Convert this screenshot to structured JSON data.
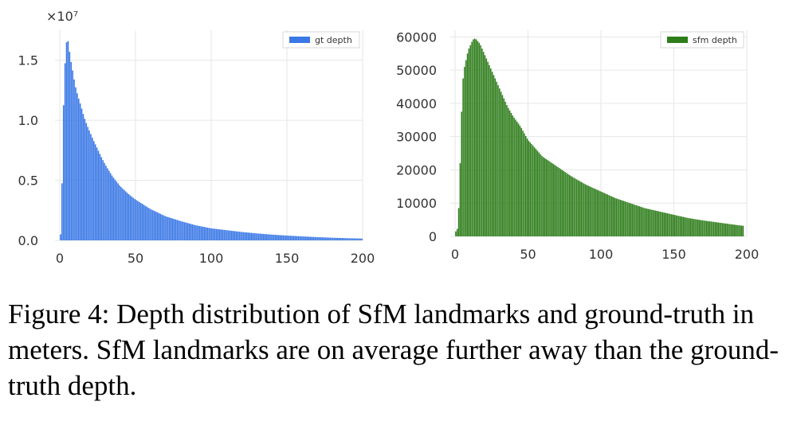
{
  "caption": "Figure 4: Depth distribution of SfM landmarks and ground-truth in meters. SfM landmarks are on average further away than the ground-truth depth.",
  "chart_data": [
    {
      "type": "bar",
      "title": "",
      "xlabel": "",
      "ylabel": "",
      "xlim": [
        0,
        200
      ],
      "ylim": [
        0,
        1.75
      ],
      "y_scale_label": "×10⁷",
      "x_ticks": [
        "0",
        "50",
        "100",
        "150",
        "200"
      ],
      "y_ticks": [
        "0.0",
        "0.5",
        "1.0",
        "1.5"
      ],
      "legend": {
        "label": "gt depth",
        "placement": "top-right"
      },
      "color": "#3a78e6",
      "grid": true,
      "x": [
        1,
        2,
        3,
        4,
        5,
        6,
        7,
        8,
        9,
        10,
        12,
        14,
        16,
        18,
        20,
        22,
        25,
        28,
        31,
        35,
        40,
        45,
        50,
        55,
        60,
        70,
        80,
        90,
        100,
        110,
        120,
        130,
        140,
        150,
        160,
        170,
        180,
        190,
        200
      ],
      "values": [
        0.05,
        0.9,
        1.35,
        1.6,
        1.7,
        1.62,
        1.52,
        1.45,
        1.38,
        1.3,
        1.2,
        1.12,
        1.03,
        0.96,
        0.9,
        0.84,
        0.76,
        0.68,
        0.61,
        0.53,
        0.45,
        0.39,
        0.34,
        0.3,
        0.26,
        0.2,
        0.16,
        0.125,
        0.1,
        0.085,
        0.07,
        0.058,
        0.048,
        0.04,
        0.033,
        0.027,
        0.022,
        0.018,
        0.015
      ]
    },
    {
      "type": "bar",
      "title": "",
      "xlabel": "",
      "ylabel": "",
      "xlim": [
        0,
        200
      ],
      "ylim": [
        0,
        62000
      ],
      "x_ticks": [
        "0",
        "50",
        "100",
        "150",
        "200"
      ],
      "y_ticks": [
        "0",
        "10000",
        "20000",
        "30000",
        "40000",
        "50000",
        "60000"
      ],
      "legend": {
        "label": "sfm depth",
        "placement": "top-right"
      },
      "color": "#2e7d1b",
      "grid": true,
      "x": [
        1,
        2,
        3,
        4,
        5,
        6,
        7,
        8,
        9,
        10,
        11,
        12,
        13,
        14,
        15,
        16,
        17,
        18,
        19,
        20,
        22,
        24,
        26,
        28,
        30,
        33,
        36,
        40,
        45,
        50,
        55,
        60,
        70,
        80,
        90,
        100,
        110,
        120,
        130,
        140,
        150,
        160,
        170,
        180,
        190,
        197
      ],
      "values": [
        1500,
        3000,
        14000,
        30000,
        45000,
        50000,
        52000,
        54000,
        56000,
        57000,
        58000,
        59000,
        59500,
        59500,
        59000,
        58500,
        58000,
        57000,
        56000,
        55000,
        53000,
        51000,
        49000,
        47000,
        45000,
        42000,
        39000,
        36000,
        33000,
        29000,
        26500,
        24000,
        21000,
        18000,
        15500,
        13500,
        11500,
        10000,
        8500,
        7500,
        6500,
        5500,
        4800,
        4200,
        3600,
        3200
      ]
    }
  ]
}
